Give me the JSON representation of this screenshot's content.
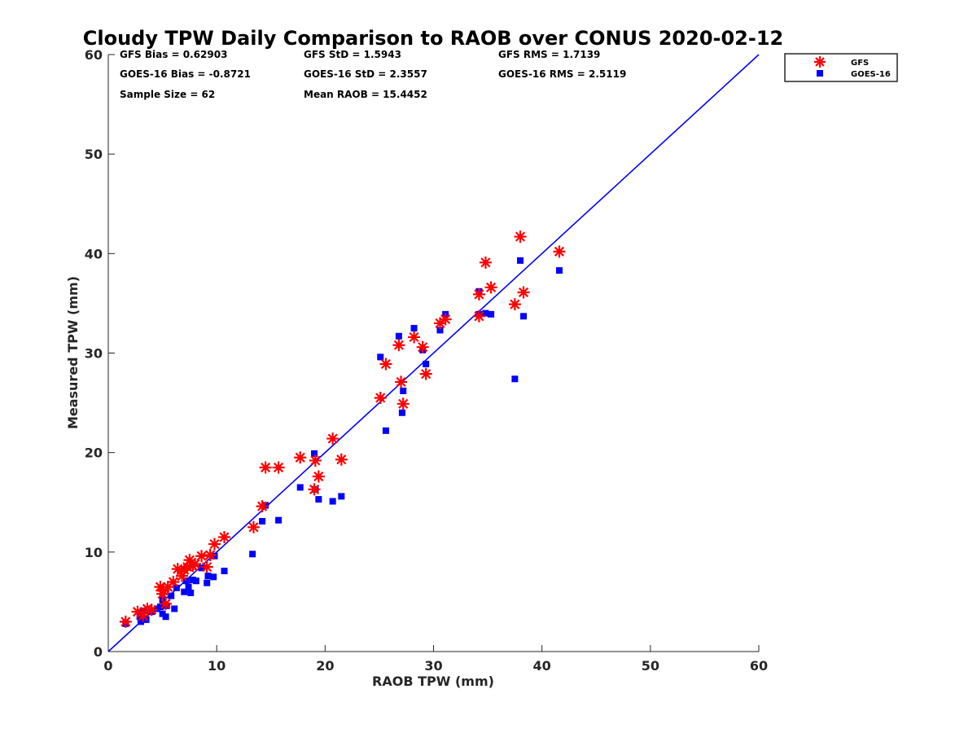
{
  "chart_data": {
    "type": "scatter",
    "title": "Cloudy TPW Daily Comparison to RAOB over CONUS 2020-02-12",
    "xlabel": "RAOB TPW (mm)",
    "ylabel": "Measured TPW (mm)",
    "xlim": [
      0,
      60
    ],
    "ylim": [
      0,
      60
    ],
    "xticks": [
      0,
      10,
      20,
      30,
      40,
      50,
      60
    ],
    "yticks": [
      0,
      10,
      20,
      30,
      40,
      50,
      60
    ],
    "grid": false,
    "legend_position": "top-right outside",
    "reference_line": {
      "x": [
        0,
        60
      ],
      "y": [
        0,
        60
      ],
      "color": "#0000ff"
    },
    "stats": [
      "GFS Bias = 0.62903",
      "GFS StD = 1.5943",
      "GFS RMS = 1.7139",
      "GOES-16 Bias = -0.8721",
      "GOES-16 StD = 2.3557",
      "GOES-16 RMS = 2.5119",
      "Sample Size = 62",
      "Mean RAOB = 15.4452"
    ],
    "series": [
      {
        "name": "GFS",
        "marker": "asterisk",
        "color": "#ff0000",
        "points": [
          [
            1.6,
            3.0
          ],
          [
            2.7,
            4.0
          ],
          [
            3.2,
            3.6
          ],
          [
            3.6,
            4.3
          ],
          [
            4.0,
            4.2
          ],
          [
            4.8,
            6.5
          ],
          [
            5.0,
            5.8
          ],
          [
            5.1,
            6.1
          ],
          [
            5.3,
            4.8
          ],
          [
            5.5,
            6.5
          ],
          [
            6.0,
            7.0
          ],
          [
            6.4,
            8.3
          ],
          [
            6.8,
            7.6
          ],
          [
            7.0,
            8.2
          ],
          [
            7.3,
            8.5
          ],
          [
            7.5,
            9.2
          ],
          [
            7.8,
            8.6
          ],
          [
            8.0,
            8.8
          ],
          [
            8.6,
            9.6
          ],
          [
            9.1,
            8.5
          ],
          [
            9.4,
            9.7
          ],
          [
            9.8,
            10.8
          ],
          [
            10.7,
            11.5
          ],
          [
            13.4,
            12.5
          ],
          [
            14.2,
            14.6
          ],
          [
            14.5,
            18.5
          ],
          [
            15.7,
            18.5
          ],
          [
            17.7,
            19.5
          ],
          [
            19.0,
            16.3
          ],
          [
            19.1,
            19.2
          ],
          [
            19.4,
            17.6
          ],
          [
            20.7,
            21.4
          ],
          [
            21.5,
            19.3
          ],
          [
            25.1,
            25.5
          ],
          [
            25.6,
            28.9
          ],
          [
            26.8,
            30.8
          ],
          [
            27.0,
            27.1
          ],
          [
            27.2,
            24.9
          ],
          [
            28.2,
            31.6
          ],
          [
            29.0,
            30.6
          ],
          [
            29.3,
            27.9
          ],
          [
            30.6,
            33.0
          ],
          [
            31.1,
            33.4
          ],
          [
            34.2,
            33.7
          ],
          [
            34.2,
            35.9
          ],
          [
            34.8,
            39.1
          ],
          [
            35.3,
            36.6
          ],
          [
            37.5,
            34.9
          ],
          [
            38.0,
            41.7
          ],
          [
            38.3,
            36.1
          ],
          [
            41.6,
            40.2
          ]
        ]
      },
      {
        "name": "GOES-16",
        "marker": "square",
        "color": "#0000ff",
        "points": [
          [
            1.6,
            2.8
          ],
          [
            2.9,
            3.5
          ],
          [
            3.0,
            3.0
          ],
          [
            3.2,
            4.1
          ],
          [
            3.5,
            3.2
          ],
          [
            4.0,
            4.0
          ],
          [
            4.5,
            4.3
          ],
          [
            4.8,
            4.5
          ],
          [
            5.0,
            3.8
          ],
          [
            5.0,
            5.2
          ],
          [
            5.3,
            3.5
          ],
          [
            5.4,
            4.6
          ],
          [
            5.8,
            5.6
          ],
          [
            6.1,
            4.3
          ],
          [
            6.3,
            6.4
          ],
          [
            7.0,
            6.0
          ],
          [
            7.2,
            7.1
          ],
          [
            7.4,
            6.5
          ],
          [
            7.6,
            5.9
          ],
          [
            7.8,
            7.2
          ],
          [
            8.1,
            7.1
          ],
          [
            8.6,
            8.4
          ],
          [
            9.1,
            6.9
          ],
          [
            9.2,
            7.6
          ],
          [
            9.7,
            7.5
          ],
          [
            9.8,
            9.6
          ],
          [
            10.7,
            8.1
          ],
          [
            13.3,
            9.8
          ],
          [
            14.2,
            13.1
          ],
          [
            14.5,
            14.7
          ],
          [
            15.7,
            13.2
          ],
          [
            17.7,
            16.5
          ],
          [
            19.0,
            19.9
          ],
          [
            19.1,
            16.3
          ],
          [
            19.4,
            15.3
          ],
          [
            20.7,
            15.1
          ],
          [
            21.5,
            15.6
          ],
          [
            25.1,
            29.6
          ],
          [
            25.6,
            22.2
          ],
          [
            26.8,
            31.7
          ],
          [
            27.1,
            24.0
          ],
          [
            27.2,
            26.2
          ],
          [
            28.2,
            32.5
          ],
          [
            29.0,
            30.3
          ],
          [
            29.3,
            28.9
          ],
          [
            30.6,
            32.3
          ],
          [
            31.1,
            33.9
          ],
          [
            34.2,
            33.9
          ],
          [
            34.2,
            36.2
          ],
          [
            34.8,
            34.0
          ],
          [
            35.3,
            33.9
          ],
          [
            37.5,
            27.4
          ],
          [
            38.0,
            39.3
          ],
          [
            38.3,
            33.7
          ],
          [
            41.6,
            38.3
          ]
        ]
      }
    ]
  }
}
